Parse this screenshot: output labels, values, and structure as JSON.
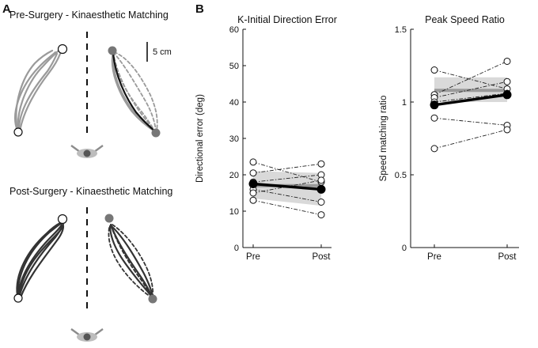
{
  "panelA": {
    "letter": "A",
    "pre_title": "Pre-Surgery - Kinaesthetic Matching",
    "post_title": "Post-Surgery - Kinaesthetic Matching",
    "scale_label": "5 cm",
    "colors": {
      "pre": "#9a9a9a",
      "post": "#333333",
      "eye": "#8c8c8c"
    }
  },
  "panelB": {
    "letter": "B"
  },
  "chart_data": [
    {
      "type": "line",
      "title": "K-Initial Direction Error",
      "xlabel": "",
      "ylabel": "Directional error (deg)",
      "categories": [
        "Pre",
        "Post"
      ],
      "ylim": [
        0,
        60
      ],
      "yticks": [
        0,
        10,
        20,
        30,
        40,
        50,
        60
      ],
      "grid": false,
      "mean": {
        "values": [
          17.5,
          16.0
        ],
        "color": "#000000"
      },
      "band": {
        "lower": [
          13.5,
          11.5
        ],
        "upper": [
          21.0,
          20.5
        ],
        "center": [
          17.0,
          17.0
        ],
        "color": "#d9d9d9"
      },
      "subjects": [
        [
          23.5,
          18.0
        ],
        [
          20.5,
          23.0
        ],
        [
          18.0,
          20.0
        ],
        [
          16.0,
          12.5
        ],
        [
          15.0,
          18.5
        ],
        [
          13.0,
          9.0
        ]
      ]
    },
    {
      "type": "line",
      "title": "Peak Speed Ratio",
      "xlabel": "",
      "ylabel": "Speed matching ratio",
      "categories": [
        "Pre",
        "Post"
      ],
      "ylim": [
        0,
        1.5
      ],
      "yticks": [
        0,
        0.5,
        1,
        1.5
      ],
      "ytick_labels": [
        "0",
        "0.5",
        "1",
        "1.5"
      ],
      "grid": false,
      "mean": {
        "values": [
          0.98,
          1.05
        ],
        "color": "#000000"
      },
      "band": {
        "lower": [
          1.0,
          1.0
        ],
        "upper": [
          1.17,
          1.17
        ],
        "center": [
          1.08,
          1.08
        ],
        "color": "#d9d9d9"
      },
      "subjects": [
        [
          1.22,
          1.09
        ],
        [
          1.05,
          1.28
        ],
        [
          1.03,
          1.14
        ],
        [
          1.0,
          1.06
        ],
        [
          0.89,
          0.84
        ],
        [
          0.68,
          0.81
        ]
      ]
    }
  ]
}
